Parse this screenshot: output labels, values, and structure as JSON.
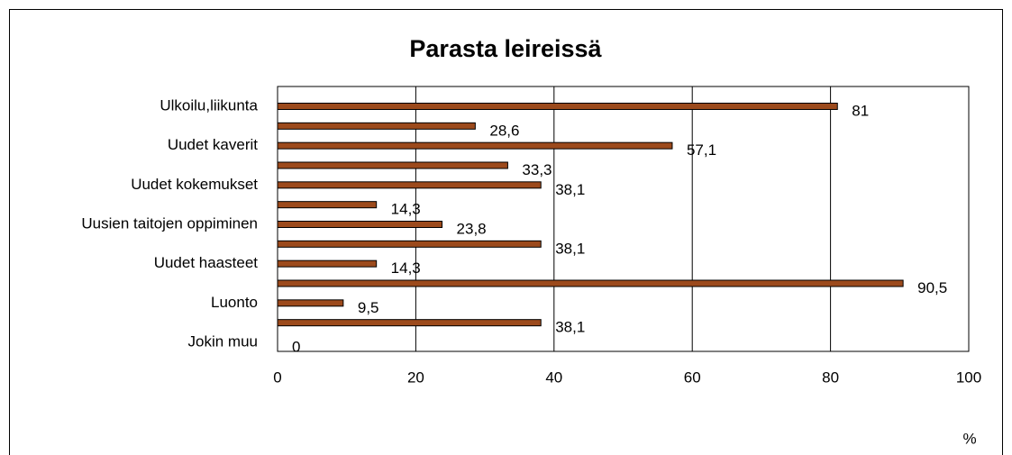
{
  "chart_data": {
    "type": "hbar",
    "title": "Parasta leireissä",
    "x_label": "%",
    "categories": [
      "Ulkoilu,liikunta",
      null,
      "Uudet kaverit",
      null,
      "Uudet kokemukset",
      null,
      "Uusien taitojen oppiminen",
      null,
      "Uudet haasteet",
      null,
      "Luonto",
      null,
      "Jokin muu"
    ],
    "values": [
      81,
      28.6,
      57.1,
      33.3,
      38.1,
      14.3,
      23.8,
      38.1,
      14.3,
      90.5,
      9.5,
      38.1,
      0
    ],
    "value_labels": [
      "81",
      "28,6",
      "57,1",
      "33,3",
      "38,1",
      "14,3",
      "23,8",
      "38,1",
      "14,3",
      "90,5",
      "9,5",
      "38,1",
      "0"
    ],
    "color": "#9c4a1c",
    "xlim": [
      0,
      100
    ],
    "xticks": [
      0,
      20,
      40,
      60,
      80,
      100
    ],
    "grid": true
  }
}
